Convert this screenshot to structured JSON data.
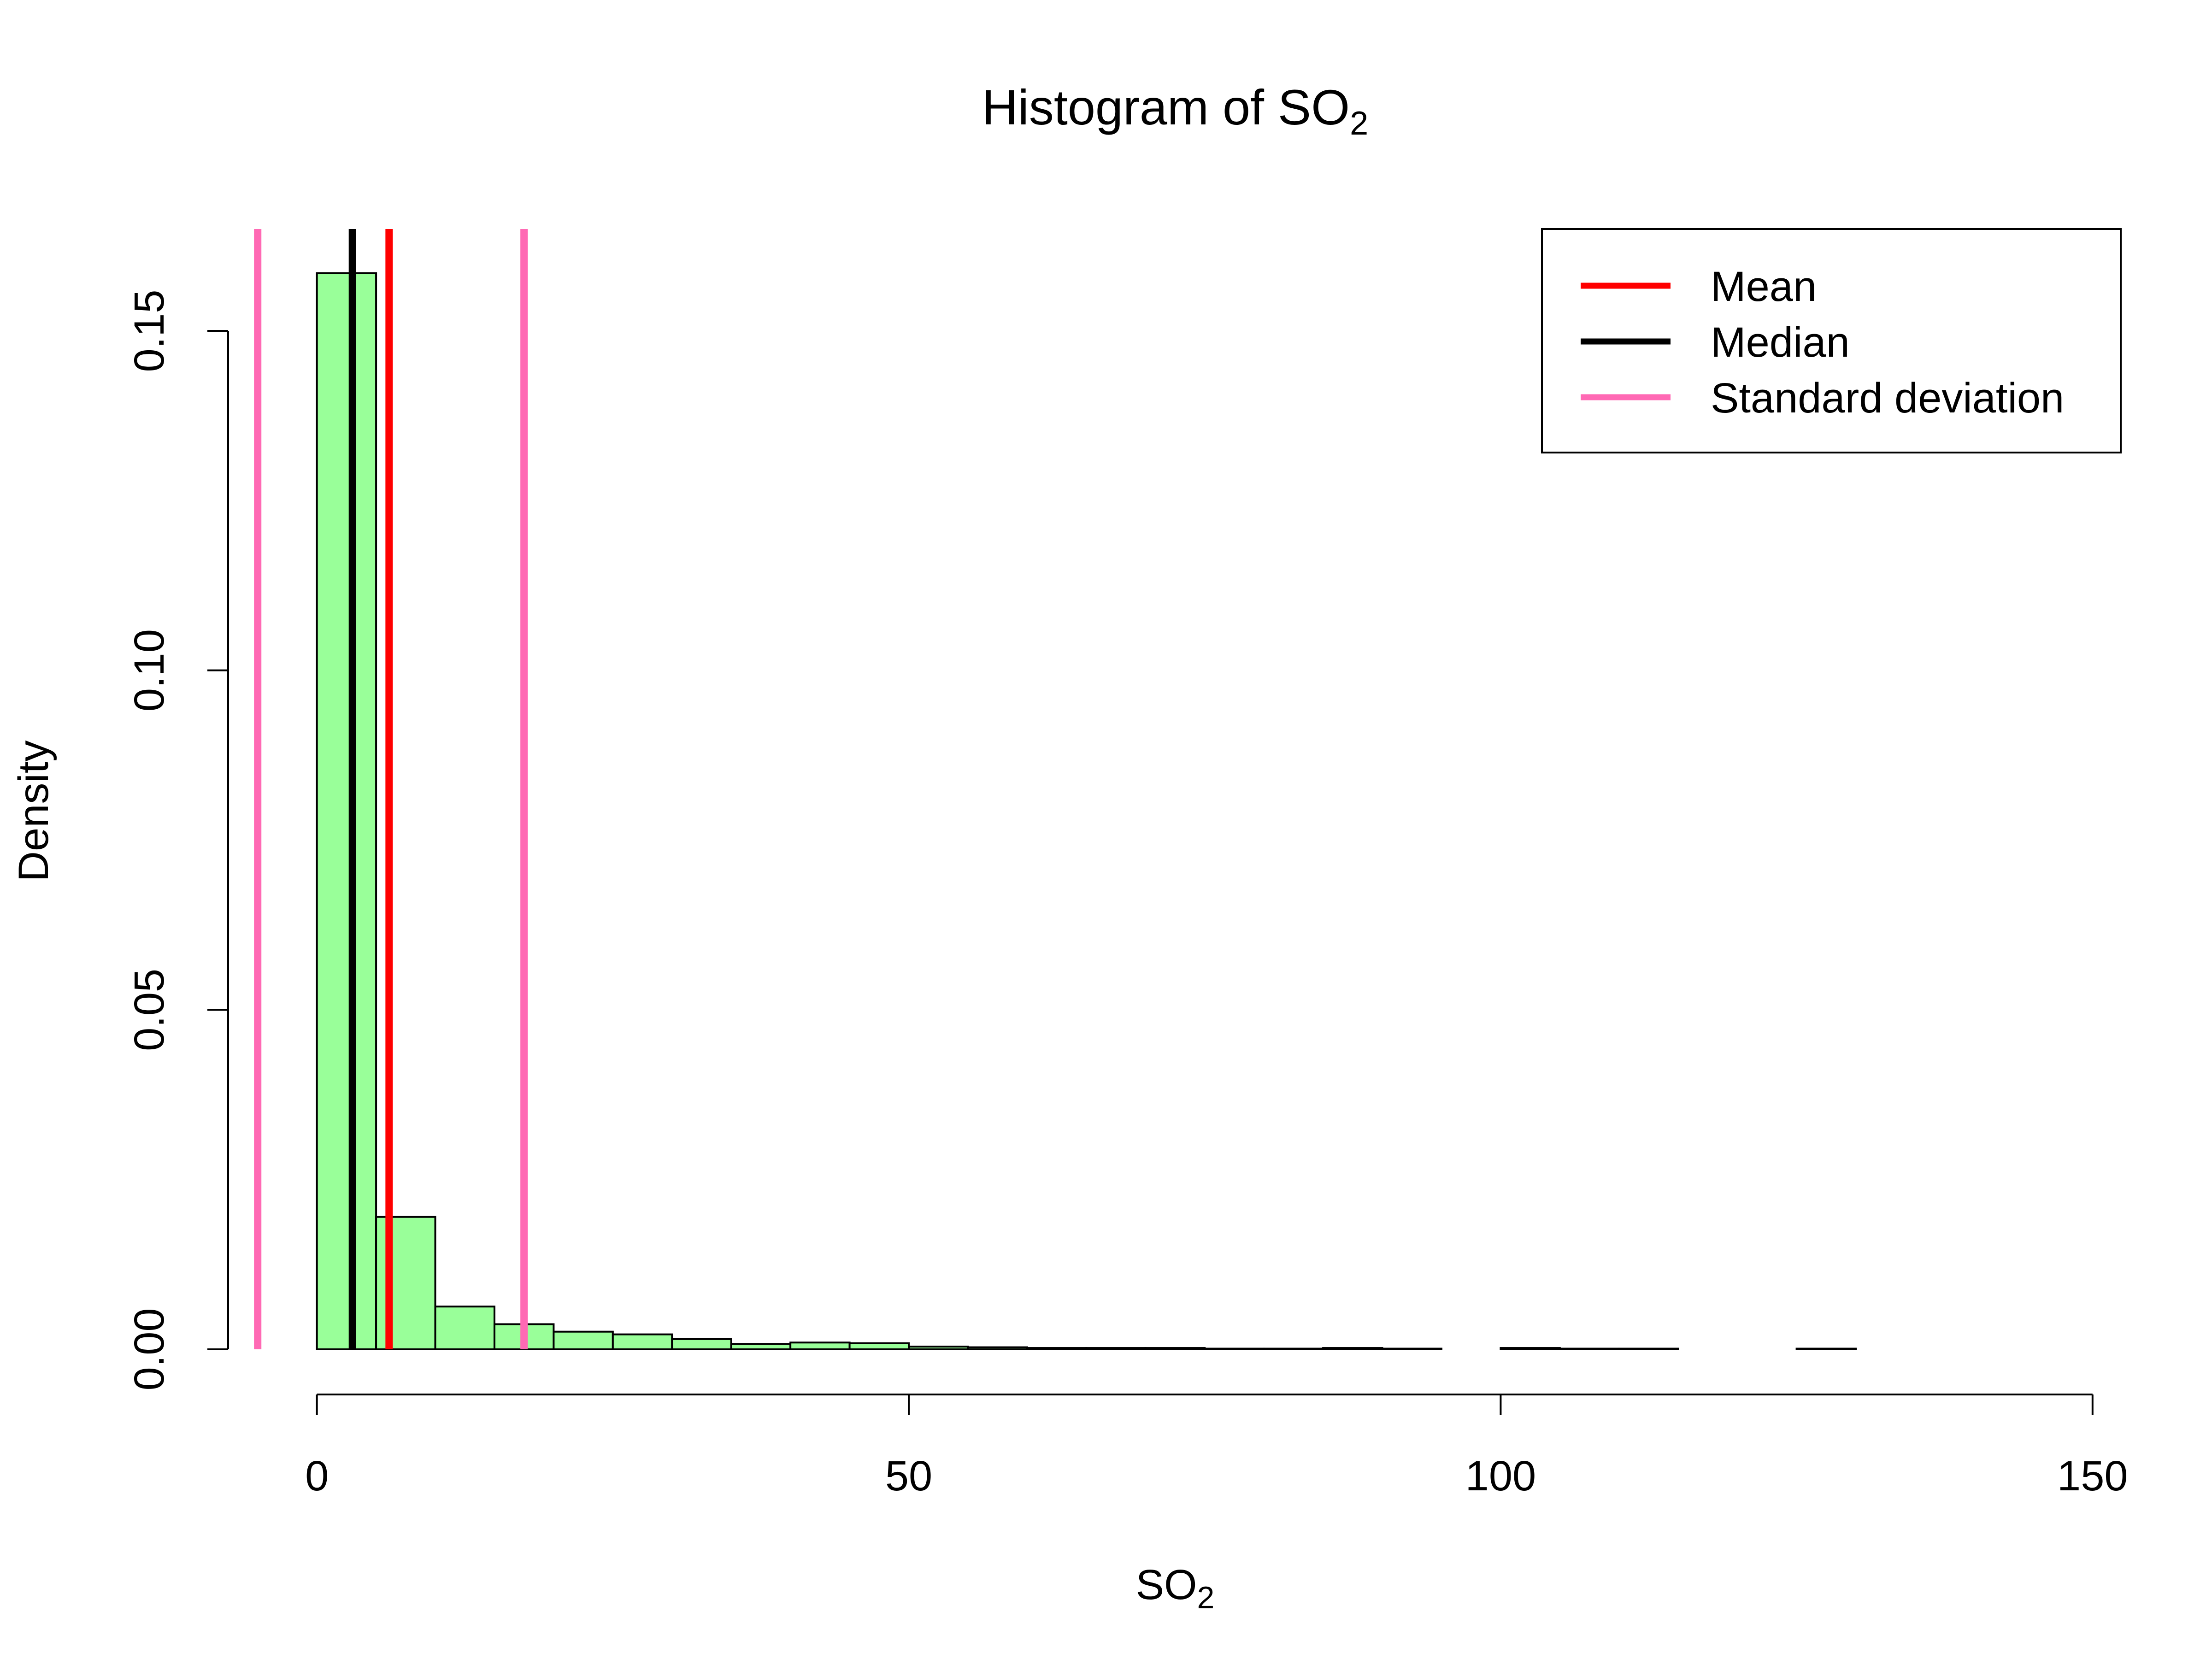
{
  "chart_data": {
    "type": "bar",
    "title": "Histogram of SO",
    "title_subscript": "2",
    "xlabel": "SO",
    "xlabel_subscript": "2",
    "ylabel": "Density",
    "xlim": [
      -7.5,
      152.5
    ],
    "ylim": [
      0,
      0.165
    ],
    "x_ticks": [
      0,
      50,
      100,
      150
    ],
    "y_ticks": [
      0.0,
      0.05,
      0.1,
      0.15
    ],
    "x_tick_labels": [
      "0",
      "50",
      "100",
      "150"
    ],
    "y_tick_labels": [
      "0.00",
      "0.05",
      "0.10",
      "0.15"
    ],
    "grid": false,
    "bar_fill": "#99FF99",
    "bar_edge": "#000000",
    "bins": [
      {
        "x0": 0,
        "x1": 5,
        "density": 0.1585
      },
      {
        "x0": 5,
        "x1": 10,
        "density": 0.0195
      },
      {
        "x0": 10,
        "x1": 15,
        "density": 0.0063
      },
      {
        "x0": 15,
        "x1": 20,
        "density": 0.0037
      },
      {
        "x0": 20,
        "x1": 25,
        "density": 0.0026
      },
      {
        "x0": 25,
        "x1": 30,
        "density": 0.0022
      },
      {
        "x0": 30,
        "x1": 35,
        "density": 0.0015
      },
      {
        "x0": 35,
        "x1": 40,
        "density": 0.0008
      },
      {
        "x0": 40,
        "x1": 45,
        "density": 0.001
      },
      {
        "x0": 45,
        "x1": 50,
        "density": 0.0009
      },
      {
        "x0": 50,
        "x1": 55,
        "density": 0.0004
      },
      {
        "x0": 55,
        "x1": 60,
        "density": 0.0003
      },
      {
        "x0": 60,
        "x1": 65,
        "density": 0.0002
      },
      {
        "x0": 65,
        "x1": 70,
        "density": 0.0002
      },
      {
        "x0": 70,
        "x1": 75,
        "density": 0.0002
      },
      {
        "x0": 75,
        "x1": 80,
        "density": 0.0001
      },
      {
        "x0": 80,
        "x1": 85,
        "density": 0.0001
      },
      {
        "x0": 85,
        "x1": 90,
        "density": 0.0002
      },
      {
        "x0": 90,
        "x1": 95,
        "density": 0.0001
      },
      {
        "x0": 95,
        "x1": 100,
        "density": 0.0
      },
      {
        "x0": 100,
        "x1": 105,
        "density": 0.0002
      },
      {
        "x0": 105,
        "x1": 110,
        "density": 0.0001
      },
      {
        "x0": 110,
        "x1": 115,
        "density": 0.0001
      },
      {
        "x0": 115,
        "x1": 120,
        "density": 0.0
      },
      {
        "x0": 120,
        "x1": 125,
        "density": 0.0
      },
      {
        "x0": 125,
        "x1": 130,
        "density": 0.0001
      },
      {
        "x0": 130,
        "x1": 135,
        "density": 0.0
      },
      {
        "x0": 135,
        "x1": 140,
        "density": 0.0
      },
      {
        "x0": 140,
        "x1": 145,
        "density": 0.0
      }
    ],
    "vlines": [
      {
        "name": "mean",
        "x": 6.1,
        "color": "#FF0000"
      },
      {
        "name": "median",
        "x": 3.0,
        "color": "#000000"
      },
      {
        "name": "sd-lower",
        "x": -5.0,
        "color": "#FF69B4"
      },
      {
        "name": "sd-upper",
        "x": 17.5,
        "color": "#FF69B4"
      }
    ],
    "legend": {
      "position": "top-right",
      "entries": [
        {
          "label": "Mean",
          "color": "#FF0000"
        },
        {
          "label": "Median",
          "color": "#000000"
        },
        {
          "label": "Standard deviation",
          "color": "#FF69B4"
        }
      ]
    }
  }
}
